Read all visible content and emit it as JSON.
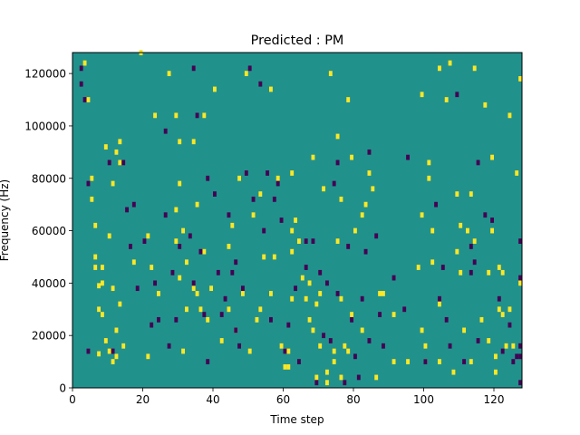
{
  "chart_data": {
    "type": "heatmap",
    "title": "Predicted : PM",
    "xlabel": "Time step",
    "ylabel": "Frequency (Hz)",
    "xlim": [
      0,
      128
    ],
    "ylim": [
      0,
      128000
    ],
    "x_ticks": [
      0,
      20,
      40,
      60,
      80,
      100,
      120
    ],
    "y_ticks": [
      0,
      20000,
      40000,
      60000,
      80000,
      100000,
      120000
    ],
    "x_tick_labels": [
      "0",
      "20",
      "40",
      "60",
      "80",
      "100",
      "120"
    ],
    "y_tick_labels": [
      "0",
      "20000",
      "40000",
      "60000",
      "80000",
      "100000",
      "120000"
    ],
    "grid": false,
    "colormap": "viridis",
    "background_value": 0,
    "value_colors": {
      "-1": "#440154",
      "0": "#21918c",
      "1": "#fde725"
    },
    "cell_height_hz": 1000,
    "cells": [
      [
        1,
        3,
        124
      ],
      [
        1,
        4,
        110
      ],
      [
        1,
        5,
        80
      ],
      [
        1,
        5,
        72
      ],
      [
        1,
        6,
        62
      ],
      [
        1,
        6,
        50
      ],
      [
        1,
        6,
        46
      ],
      [
        1,
        7,
        39
      ],
      [
        1,
        7,
        30
      ],
      [
        1,
        7,
        13
      ],
      [
        1,
        8,
        46
      ],
      [
        1,
        8,
        40
      ],
      [
        1,
        8,
        28
      ],
      [
        1,
        9,
        92
      ],
      [
        1,
        9,
        18
      ],
      [
        1,
        10,
        58
      ],
      [
        1,
        10,
        14
      ],
      [
        1,
        11,
        78
      ],
      [
        1,
        11,
        38
      ],
      [
        1,
        11,
        10
      ],
      [
        1,
        12,
        90
      ],
      [
        1,
        12,
        22
      ],
      [
        1,
        12,
        12
      ],
      [
        1,
        13,
        94
      ],
      [
        1,
        13,
        86
      ],
      [
        1,
        13,
        32
      ],
      [
        1,
        14,
        16
      ],
      [
        1,
        17,
        48
      ],
      [
        1,
        19,
        128
      ],
      [
        1,
        21,
        58
      ],
      [
        1,
        21,
        12
      ],
      [
        1,
        22,
        46
      ],
      [
        1,
        23,
        104
      ],
      [
        1,
        24,
        36
      ],
      [
        1,
        27,
        120
      ],
      [
        1,
        29,
        104
      ],
      [
        1,
        29,
        68
      ],
      [
        1,
        29,
        56
      ],
      [
        1,
        30,
        94
      ],
      [
        1,
        30,
        78
      ],
      [
        1,
        30,
        42
      ],
      [
        1,
        31,
        60
      ],
      [
        1,
        31,
        14
      ],
      [
        1,
        32,
        48
      ],
      [
        1,
        32,
        30
      ],
      [
        1,
        34,
        94
      ],
      [
        1,
        34,
        38
      ],
      [
        1,
        35,
        70
      ],
      [
        1,
        35,
        36
      ],
      [
        1,
        36,
        30
      ],
      [
        1,
        37,
        104
      ],
      [
        1,
        37,
        52
      ],
      [
        1,
        38,
        26
      ],
      [
        1,
        39,
        38
      ],
      [
        1,
        40,
        114
      ],
      [
        1,
        42,
        18
      ],
      [
        1,
        44,
        54
      ],
      [
        1,
        44,
        30
      ],
      [
        1,
        45,
        62
      ],
      [
        1,
        46,
        22
      ],
      [
        1,
        47,
        80
      ],
      [
        1,
        48,
        36
      ],
      [
        1,
        49,
        120
      ],
      [
        1,
        50,
        14
      ],
      [
        1,
        51,
        66
      ],
      [
        1,
        52,
        26
      ],
      [
        1,
        53,
        74
      ],
      [
        1,
        53,
        30
      ],
      [
        1,
        54,
        50
      ],
      [
        1,
        56,
        114
      ],
      [
        1,
        56,
        36
      ],
      [
        1,
        57,
        50
      ],
      [
        1,
        58,
        80
      ],
      [
        1,
        59,
        16
      ],
      [
        1,
        60,
        8
      ],
      [
        1,
        60,
        14
      ],
      [
        1,
        61,
        8
      ],
      [
        1,
        61,
        14
      ],
      [
        1,
        62,
        82
      ],
      [
        1,
        62,
        60
      ],
      [
        1,
        62,
        52
      ],
      [
        1,
        62,
        34
      ],
      [
        1,
        63,
        64
      ],
      [
        1,
        64,
        56
      ],
      [
        1,
        65,
        42
      ],
      [
        1,
        66,
        34
      ],
      [
        1,
        67,
        40
      ],
      [
        1,
        67,
        26
      ],
      [
        1,
        68,
        88
      ],
      [
        1,
        68,
        22
      ],
      [
        1,
        69,
        4
      ],
      [
        1,
        69,
        32
      ],
      [
        1,
        70,
        36
      ],
      [
        1,
        70,
        16
      ],
      [
        1,
        71,
        76
      ],
      [
        1,
        72,
        6
      ],
      [
        1,
        72,
        2
      ],
      [
        1,
        73,
        120
      ],
      [
        1,
        74,
        14
      ],
      [
        1,
        74,
        10
      ],
      [
        1,
        75,
        96
      ],
      [
        1,
        75,
        56
      ],
      [
        1,
        76,
        72
      ],
      [
        1,
        76,
        34
      ],
      [
        1,
        76,
        4
      ],
      [
        1,
        77,
        16
      ],
      [
        1,
        78,
        110
      ],
      [
        1,
        78,
        14
      ],
      [
        1,
        79,
        88
      ],
      [
        1,
        79,
        28
      ],
      [
        1,
        80,
        60
      ],
      [
        1,
        82,
        22
      ],
      [
        1,
        82,
        66
      ],
      [
        1,
        83,
        70
      ],
      [
        1,
        84,
        82
      ],
      [
        1,
        85,
        76
      ],
      [
        1,
        86,
        4
      ],
      [
        1,
        87,
        36
      ],
      [
        1,
        88,
        36
      ],
      [
        1,
        91,
        10
      ],
      [
        1,
        91,
        28
      ],
      [
        1,
        95,
        10
      ],
      [
        1,
        98,
        46
      ],
      [
        1,
        99,
        112
      ],
      [
        1,
        99,
        66
      ],
      [
        1,
        99,
        22
      ],
      [
        1,
        100,
        16
      ],
      [
        1,
        100,
        10
      ],
      [
        1,
        101,
        86
      ],
      [
        1,
        101,
        80
      ],
      [
        1,
        102,
        48
      ],
      [
        1,
        102,
        60
      ],
      [
        1,
        104,
        32
      ],
      [
        1,
        104,
        10
      ],
      [
        1,
        104,
        122
      ],
      [
        1,
        106,
        110
      ],
      [
        1,
        107,
        124
      ],
      [
        1,
        108,
        6
      ],
      [
        1,
        109,
        74
      ],
      [
        1,
        109,
        52
      ],
      [
        1,
        110,
        44
      ],
      [
        1,
        110,
        62
      ],
      [
        1,
        111,
        22
      ],
      [
        1,
        112,
        60
      ],
      [
        1,
        113,
        74
      ],
      [
        1,
        113,
        10
      ],
      [
        1,
        114,
        56
      ],
      [
        1,
        114,
        122
      ],
      [
        1,
        116,
        26
      ],
      [
        1,
        118,
        44
      ],
      [
        1,
        119,
        88
      ],
      [
        1,
        119,
        60
      ],
      [
        1,
        120,
        12
      ],
      [
        1,
        120,
        6
      ],
      [
        1,
        121,
        46
      ],
      [
        1,
        121,
        30
      ],
      [
        1,
        122,
        44
      ],
      [
        1,
        122,
        28
      ],
      [
        1,
        123,
        16
      ],
      [
        1,
        124,
        30
      ],
      [
        1,
        125,
        16
      ],
      [
        1,
        126,
        82
      ],
      [
        1,
        127,
        40
      ],
      [
        1,
        127,
        118
      ],
      [
        1,
        117,
        108
      ],
      [
        1,
        118,
        18
      ],
      [
        1,
        124,
        104
      ],
      [
        -1,
        2,
        122
      ],
      [
        -1,
        2,
        116
      ],
      [
        -1,
        3,
        110
      ],
      [
        -1,
        4,
        78
      ],
      [
        -1,
        4,
        14
      ],
      [
        -1,
        10,
        86
      ],
      [
        -1,
        11,
        14
      ],
      [
        -1,
        14,
        86
      ],
      [
        -1,
        15,
        68
      ],
      [
        -1,
        16,
        54
      ],
      [
        -1,
        17,
        70
      ],
      [
        -1,
        18,
        38
      ],
      [
        -1,
        20,
        56
      ],
      [
        -1,
        22,
        24
      ],
      [
        -1,
        23,
        40
      ],
      [
        -1,
        24,
        26
      ],
      [
        -1,
        26,
        98
      ],
      [
        -1,
        26,
        66
      ],
      [
        -1,
        27,
        16
      ],
      [
        -1,
        28,
        44
      ],
      [
        -1,
        29,
        26
      ],
      [
        -1,
        30,
        54
      ],
      [
        -1,
        33,
        58
      ],
      [
        -1,
        34,
        122
      ],
      [
        -1,
        34,
        40
      ],
      [
        -1,
        35,
        104
      ],
      [
        -1,
        36,
        52
      ],
      [
        -1,
        37,
        28
      ],
      [
        -1,
        38,
        80
      ],
      [
        -1,
        38,
        10
      ],
      [
        -1,
        40,
        74
      ],
      [
        -1,
        41,
        44
      ],
      [
        -1,
        42,
        28
      ],
      [
        -1,
        43,
        34
      ],
      [
        -1,
        44,
        66
      ],
      [
        -1,
        45,
        44
      ],
      [
        -1,
        46,
        48
      ],
      [
        -1,
        46,
        22
      ],
      [
        -1,
        47,
        16
      ],
      [
        -1,
        48,
        38
      ],
      [
        -1,
        49,
        82
      ],
      [
        -1,
        50,
        122
      ],
      [
        -1,
        51,
        72
      ],
      [
        -1,
        53,
        116
      ],
      [
        -1,
        54,
        60
      ],
      [
        -1,
        55,
        82
      ],
      [
        -1,
        56,
        26
      ],
      [
        -1,
        57,
        72
      ],
      [
        -1,
        58,
        78
      ],
      [
        -1,
        59,
        64
      ],
      [
        -1,
        60,
        14
      ],
      [
        -1,
        61,
        24
      ],
      [
        -1,
        63,
        38
      ],
      [
        -1,
        64,
        10
      ],
      [
        -1,
        66,
        46
      ],
      [
        -1,
        66,
        56
      ],
      [
        -1,
        68,
        56
      ],
      [
        -1,
        69,
        2
      ],
      [
        -1,
        70,
        44
      ],
      [
        -1,
        71,
        20
      ],
      [
        -1,
        72,
        40
      ],
      [
        -1,
        73,
        18
      ],
      [
        -1,
        74,
        78
      ],
      [
        -1,
        75,
        86
      ],
      [
        -1,
        75,
        36
      ],
      [
        -1,
        77,
        2
      ],
      [
        -1,
        78,
        54
      ],
      [
        -1,
        79,
        26
      ],
      [
        -1,
        80,
        12
      ],
      [
        -1,
        81,
        4
      ],
      [
        -1,
        82,
        34
      ],
      [
        -1,
        83,
        52
      ],
      [
        -1,
        84,
        90
      ],
      [
        -1,
        84,
        18
      ],
      [
        -1,
        86,
        58
      ],
      [
        -1,
        87,
        28
      ],
      [
        -1,
        88,
        16
      ],
      [
        -1,
        91,
        42
      ],
      [
        -1,
        94,
        30
      ],
      [
        -1,
        95,
        88
      ],
      [
        -1,
        100,
        10
      ],
      [
        -1,
        103,
        70
      ],
      [
        -1,
        104,
        34
      ],
      [
        -1,
        105,
        46
      ],
      [
        -1,
        106,
        26
      ],
      [
        -1,
        107,
        16
      ],
      [
        -1,
        109,
        112
      ],
      [
        -1,
        111,
        10
      ],
      [
        -1,
        113,
        54
      ],
      [
        -1,
        115,
        18
      ],
      [
        -1,
        115,
        86
      ],
      [
        -1,
        117,
        66
      ],
      [
        -1,
        119,
        64
      ],
      [
        -1,
        121,
        34
      ],
      [
        -1,
        122,
        14
      ],
      [
        -1,
        124,
        24
      ],
      [
        -1,
        125,
        10
      ],
      [
        -1,
        126,
        12
      ],
      [
        -1,
        127,
        12
      ],
      [
        -1,
        127,
        16
      ],
      [
        -1,
        127,
        56
      ],
      [
        -1,
        127,
        42
      ],
      [
        -1,
        127,
        2
      ],
      [
        -1,
        113,
        44
      ],
      [
        -1,
        114,
        48
      ]
    ]
  }
}
